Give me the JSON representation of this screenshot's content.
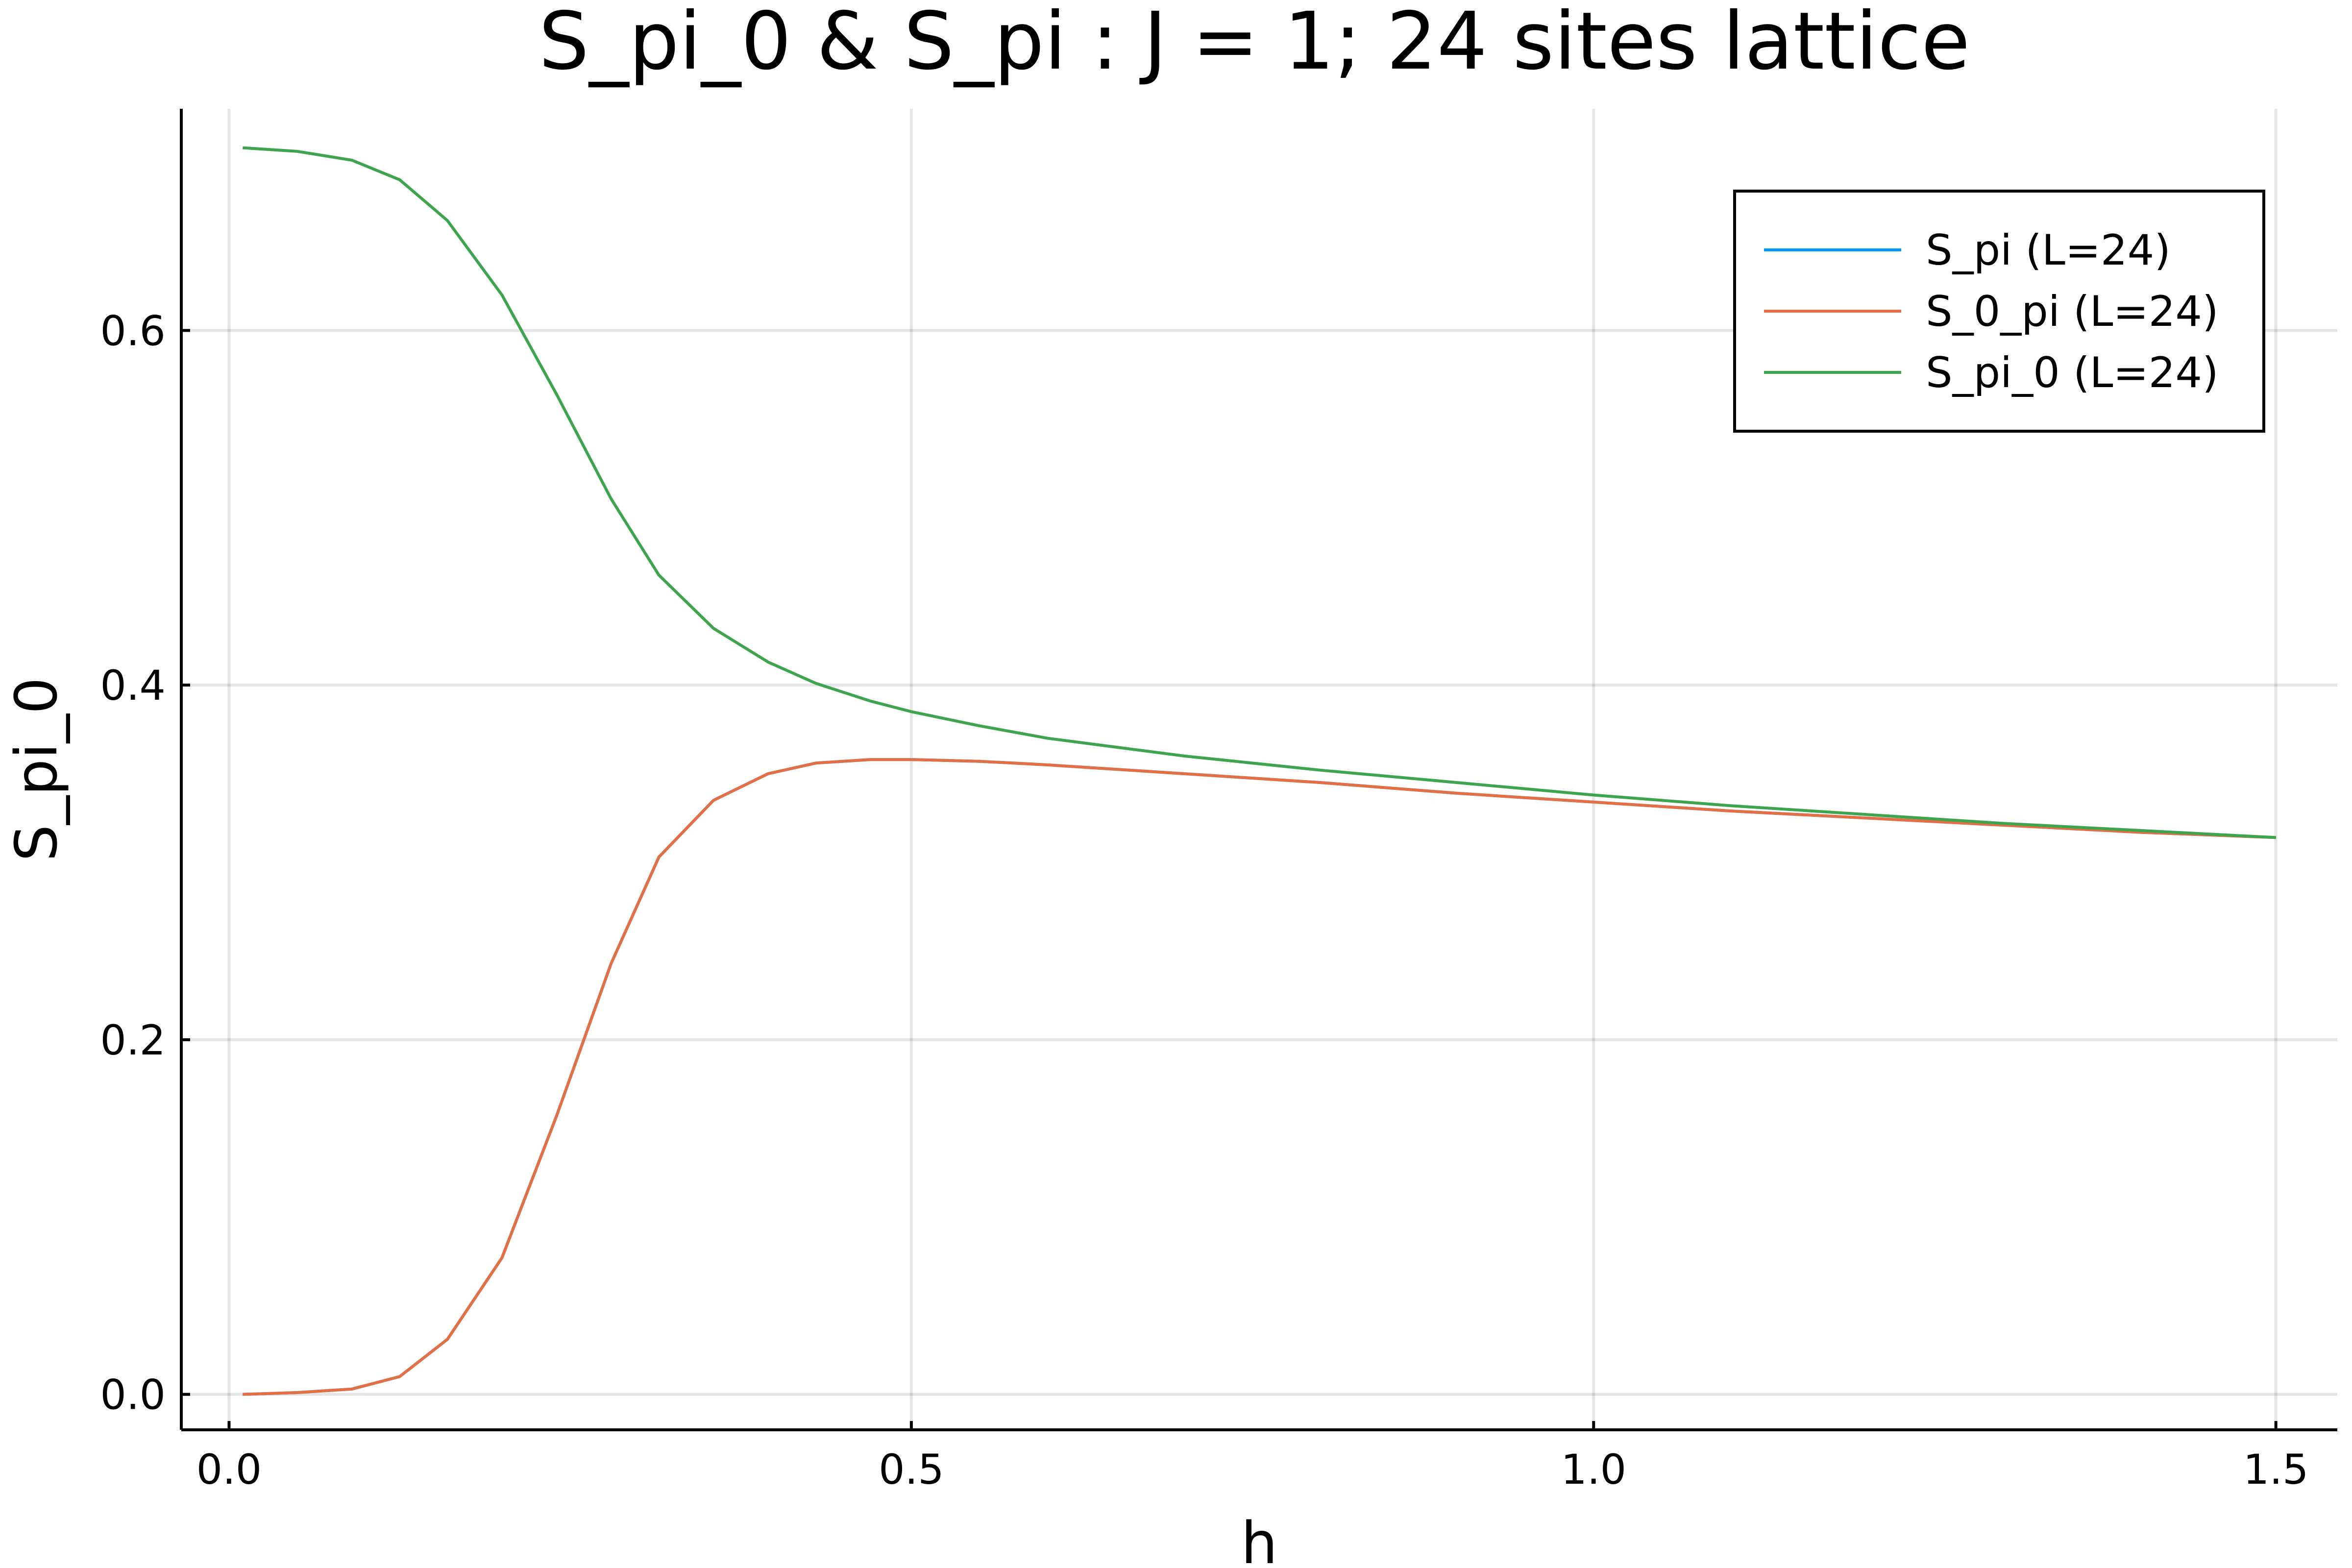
{
  "chart_data": {
    "type": "line",
    "title": "S_pi_0 & S_pi : J = 1; 24 sites lattice",
    "xlabel": "h",
    "ylabel": "S_pi_0",
    "xlim": [
      -0.035,
      1.545
    ],
    "ylim": [
      -0.02,
      0.725
    ],
    "xticks": [
      0.0,
      0.5,
      1.0,
      1.5
    ],
    "xtick_labels": [
      "0.0",
      "0.5",
      "1.0",
      "1.5"
    ],
    "yticks": [
      0.0,
      0.2,
      0.4,
      0.6
    ],
    "ytick_labels": [
      "0.0",
      "0.2",
      "0.4",
      "0.6"
    ],
    "grid": true,
    "legend_position": "top-right",
    "x": [
      0.01,
      0.05,
      0.09,
      0.125,
      0.16,
      0.2,
      0.24,
      0.28,
      0.315,
      0.355,
      0.395,
      0.43,
      0.47,
      0.5,
      0.55,
      0.6,
      0.7,
      0.8,
      0.9,
      1.0,
      1.1,
      1.2,
      1.3,
      1.4,
      1.5
    ],
    "series": [
      {
        "name": "S_pi (L=24)",
        "color": "#009AFA",
        "values": [
          0.0,
          0.001,
          0.003,
          0.01,
          0.031,
          0.077,
          0.157,
          0.243,
          0.303,
          0.335,
          0.35,
          0.356,
          0.358,
          0.358,
          0.357,
          0.355,
          0.35,
          0.345,
          0.339,
          0.334,
          0.329,
          0.325,
          0.321,
          0.317,
          0.314
        ]
      },
      {
        "name": "S_0_pi (L=24)",
        "color": "#E36F47",
        "values": [
          0.0,
          0.001,
          0.003,
          0.01,
          0.031,
          0.077,
          0.157,
          0.243,
          0.303,
          0.335,
          0.35,
          0.356,
          0.358,
          0.358,
          0.357,
          0.355,
          0.35,
          0.345,
          0.339,
          0.334,
          0.329,
          0.325,
          0.321,
          0.317,
          0.314
        ]
      },
      {
        "name": "S_pi_0 (L=24)",
        "color": "#3EA44E",
        "values": [
          0.703,
          0.701,
          0.696,
          0.685,
          0.662,
          0.62,
          0.564,
          0.505,
          0.462,
          0.432,
          0.413,
          0.401,
          0.391,
          0.385,
          0.377,
          0.37,
          0.36,
          0.352,
          0.345,
          0.338,
          0.332,
          0.327,
          0.322,
          0.318,
          0.314
        ]
      }
    ]
  }
}
